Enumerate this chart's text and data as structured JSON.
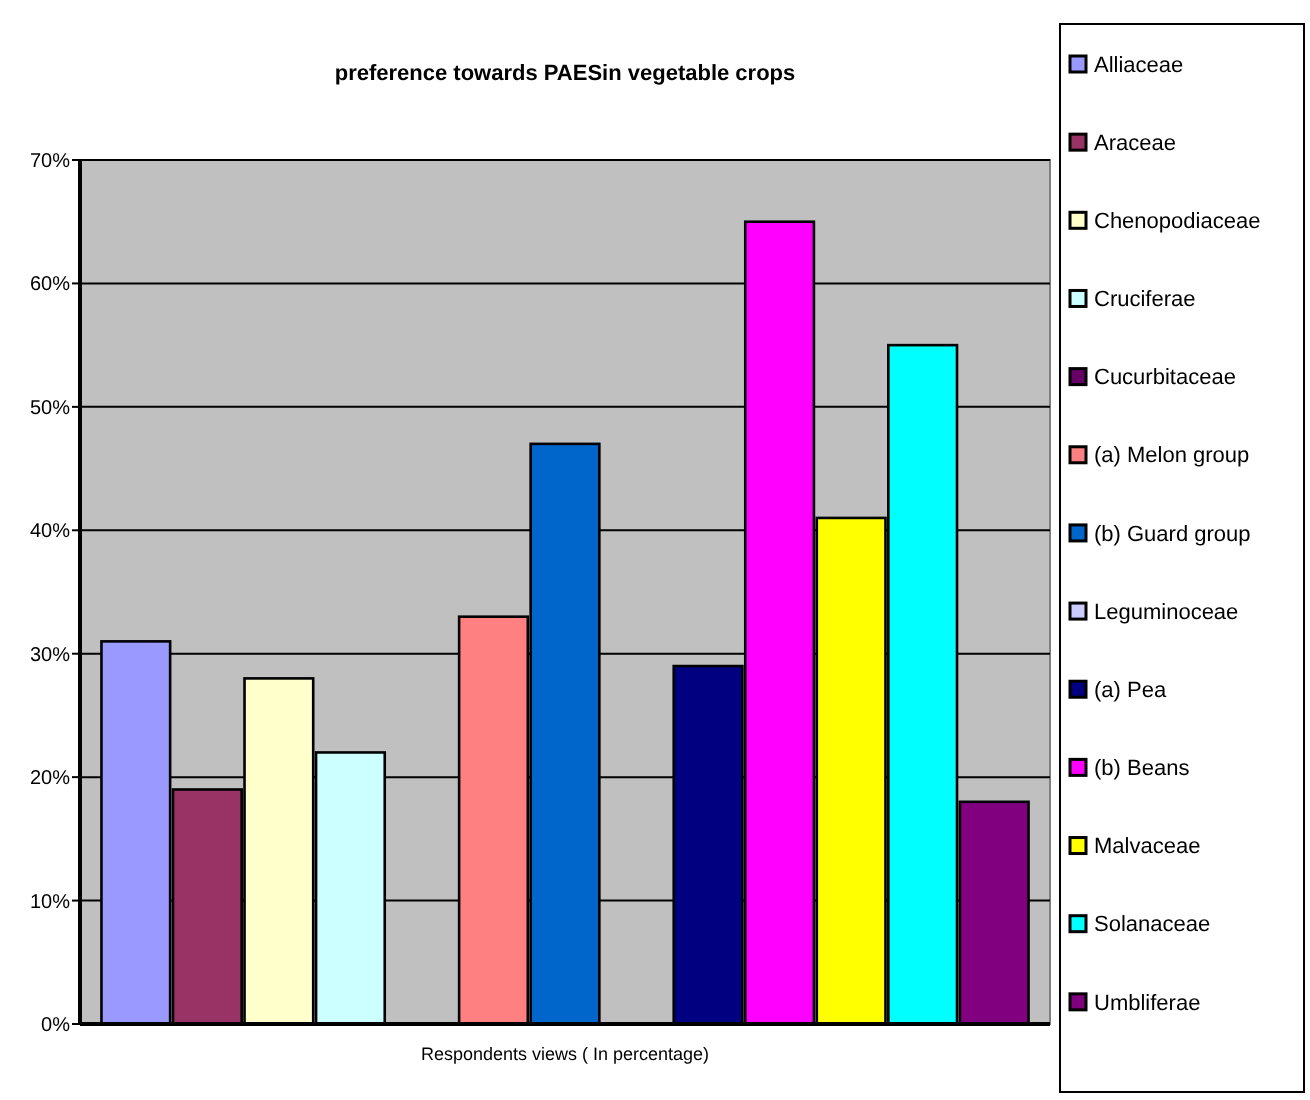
{
  "chart_data": {
    "type": "bar",
    "title": "preference towards PAESin vegetable crops",
    "xlabel": "Respondents views ( In percentage)",
    "categories": [
      null,
      null,
      null,
      null,
      null,
      null,
      null,
      null,
      null,
      null,
      null,
      null,
      null
    ],
    "series": [
      {
        "name": "Alliaceae",
        "color": "#9999ff",
        "values": [
          31,
          null,
          null,
          null,
          null,
          null,
          null,
          null,
          null,
          null,
          null,
          null,
          null
        ]
      },
      {
        "name": "Araceae",
        "color": "#993366",
        "values": [
          null,
          19,
          null,
          null,
          null,
          null,
          null,
          null,
          null,
          null,
          null,
          null,
          null
        ]
      },
      {
        "name": "Chenopodiaceae",
        "color": "#ffffcc",
        "values": [
          null,
          null,
          28,
          null,
          null,
          null,
          null,
          null,
          null,
          null,
          null,
          null,
          null
        ]
      },
      {
        "name": "Cruciferae",
        "color": "#ccffff",
        "values": [
          null,
          null,
          null,
          22,
          null,
          null,
          null,
          null,
          null,
          null,
          null,
          null,
          null
        ]
      },
      {
        "name": "Cucurbitaceae",
        "color": "#660066",
        "values": [
          null,
          null,
          null,
          null,
          null,
          null,
          null,
          null,
          null,
          null,
          null,
          null,
          null
        ]
      },
      {
        "name": "(a) Melon group",
        "color": "#ff8080",
        "values": [
          null,
          null,
          null,
          null,
          null,
          33,
          null,
          null,
          null,
          null,
          null,
          null,
          null
        ]
      },
      {
        "name": "(b) Guard group",
        "color": "#0066cc",
        "values": [
          null,
          null,
          null,
          null,
          null,
          null,
          47,
          null,
          null,
          null,
          null,
          null,
          null
        ]
      },
      {
        "name": "Leguminoceae",
        "color": "#ccccff",
        "values": [
          null,
          null,
          null,
          null,
          null,
          null,
          null,
          null,
          null,
          null,
          null,
          null,
          null
        ]
      },
      {
        "name": "(a) Pea",
        "color": "#000080",
        "values": [
          null,
          null,
          null,
          null,
          null,
          null,
          null,
          null,
          29,
          null,
          null,
          null,
          null
        ]
      },
      {
        "name": "(b) Beans",
        "color": "#ff00ff",
        "values": [
          null,
          null,
          null,
          null,
          null,
          null,
          null,
          null,
          null,
          65,
          null,
          null,
          null
        ]
      },
      {
        "name": "Malvaceae",
        "color": "#ffff00",
        "values": [
          null,
          null,
          null,
          null,
          null,
          null,
          null,
          null,
          null,
          null,
          41,
          null,
          null
        ]
      },
      {
        "name": "Solanaceae",
        "color": "#00ffff",
        "values": [
          null,
          null,
          null,
          null,
          null,
          null,
          null,
          null,
          null,
          null,
          null,
          55,
          null
        ]
      },
      {
        "name": "Umbliferae",
        "color": "#800080",
        "values": [
          null,
          null,
          null,
          null,
          null,
          null,
          null,
          null,
          null,
          null,
          null,
          null,
          18
        ]
      }
    ],
    "ylim": [
      0,
      70
    ],
    "yticks": [
      {
        "value": 0,
        "label": "0%"
      },
      {
        "value": 10,
        "label": "10%"
      },
      {
        "value": 20,
        "label": "20%"
      },
      {
        "value": 30,
        "label": "30%"
      },
      {
        "value": 40,
        "label": "40%"
      },
      {
        "value": 50,
        "label": "50%"
      },
      {
        "value": 60,
        "label": "60%"
      },
      {
        "value": 70,
        "label": "70%"
      }
    ],
    "grid": "y",
    "legend": "right"
  }
}
